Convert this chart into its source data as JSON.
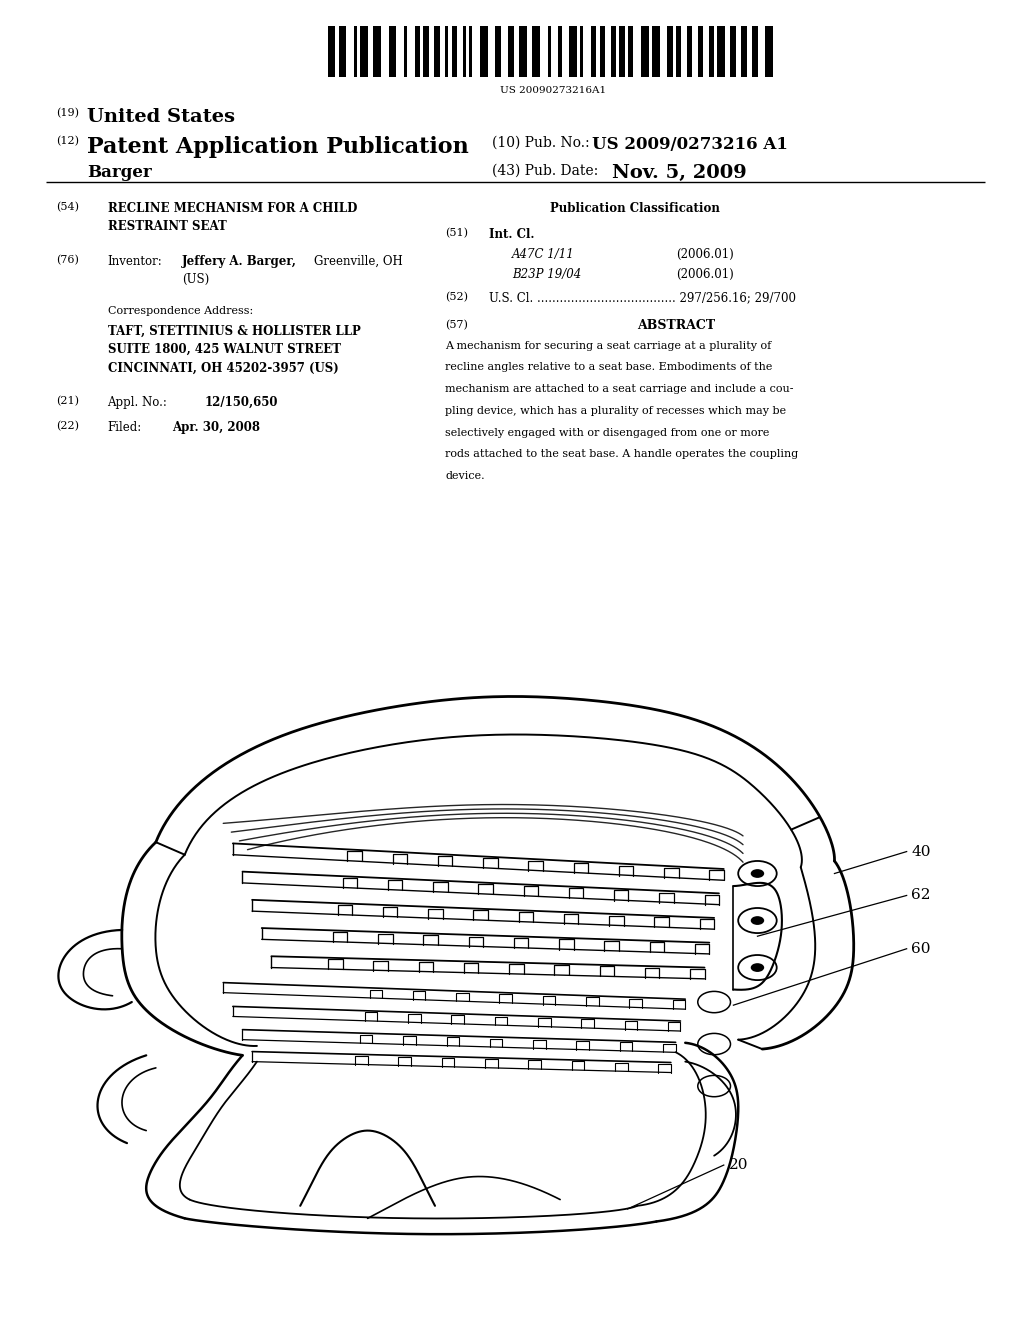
{
  "bg_color": "#ffffff",
  "page_width": 10.24,
  "page_height": 13.2,
  "barcode_text": "US 20090273216A1",
  "header_19": "(19)",
  "header_19_text": "United States",
  "header_12": "(12)",
  "header_12_text": "Patent Application Publication",
  "header_name": "Barger",
  "header_10": "(10) Pub. No.:",
  "header_10_val": "US 2009/0273216 A1",
  "header_43": "(43) Pub. Date:",
  "header_43_val": "Nov. 5, 2009",
  "field_54_label": "(54)",
  "field_54_line1": "RECLINE MECHANISM FOR A CHILD",
  "field_54_line2": "RESTRAINT SEAT",
  "field_76_label": "(76)",
  "field_76_key": "Inventor:",
  "field_76_bold": "Jeffery A. Barger,",
  "field_76_val1": "Greenville, OH",
  "field_76_val2": "(US)",
  "corr_label": "Correspondence Address:",
  "corr_line1": "TAFT, STETTINIUS & HOLLISTER LLP",
  "corr_line2": "SUITE 1800, 425 WALNUT STREET",
  "corr_line3": "CINCINNATI, OH 45202-3957 (US)",
  "field_21_label": "(21)",
  "field_21_key": "Appl. No.:",
  "field_21_val": "12/150,650",
  "field_22_label": "(22)",
  "field_22_key": "Filed:",
  "field_22_val": "Apr. 30, 2008",
  "pub_class_title": "Publication Classification",
  "field_51_label": "(51)",
  "field_51_text": "Int. Cl.",
  "field_51_a47": "A47C 1/11",
  "field_51_a47_year": "(2006.01)",
  "field_51_b23": "B23P 19/04",
  "field_51_b23_year": "(2006.01)",
  "field_52_label": "(52)",
  "field_52_text": "U.S. Cl. ..................................... 297/256.16; 29/700",
  "field_57_label": "(57)",
  "field_57_title": "ABSTRACT",
  "abstract_lines": [
    "A mechanism for securing a seat carriage at a plurality of",
    "recline angles relative to a seat base. Embodiments of the",
    "mechanism are attached to a seat carriage and include a cou-",
    "pling device, which has a plurality of recesses which may be",
    "selectively engaged with or disengaged from one or more",
    "rods attached to the seat base. A handle operates the coupling",
    "device."
  ],
  "label_40": "40",
  "label_62": "62",
  "label_60": "60",
  "label_20": "20"
}
